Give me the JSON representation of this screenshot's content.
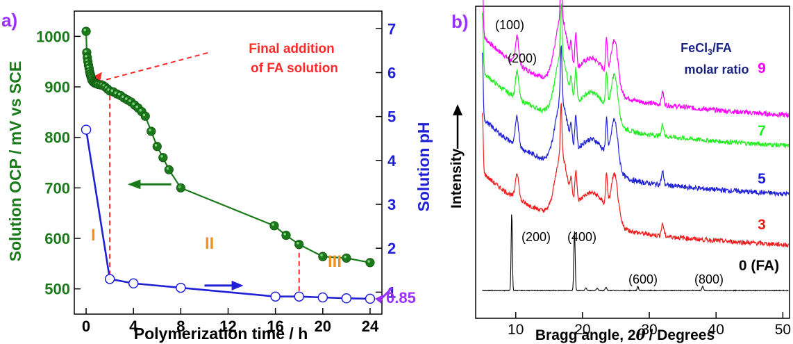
{
  "chart_data": [
    {
      "panel_label": "a)",
      "type": "line",
      "xlabel": "Polymerization time / h",
      "ylabel_left": "Solution OCP / mV vs SCE",
      "ylabel_right": "Solution pH",
      "xlim": [
        -1,
        25
      ],
      "ylim_left": [
        450,
        1050
      ],
      "ylim_right": [
        0.5,
        7.4
      ],
      "xticks": [
        "0",
        "4",
        "8",
        "12",
        "16",
        "20",
        "24"
      ],
      "yticks_left": [
        "500",
        "600",
        "700",
        "800",
        "900",
        "1000"
      ],
      "yticks_right": [
        "1",
        "2",
        "3",
        "4",
        "5",
        "6",
        "7"
      ],
      "colors": {
        "ocp": "#1a7a1a",
        "ph": "#1f1fd6",
        "annotation": "#ff2a2a",
        "roman": "#f0901e",
        "highlight": "#9b30ff"
      },
      "series": [
        {
          "name": "",
          "axis": "left",
          "x": [
            0,
            0.05,
            0.1,
            0.15,
            0.2,
            0.25,
            0.3,
            0.35,
            0.4,
            0.45,
            0.5,
            0.6,
            0.7,
            0.8,
            0.9,
            1.0,
            1.2,
            1.4,
            1.6,
            1.8,
            2.0,
            2.3,
            2.6,
            2.9,
            3.2,
            3.5,
            3.8,
            4.1,
            4.4,
            4.7,
            5.0,
            5.5,
            6.0,
            6.5,
            7.0,
            8.0,
            15.9,
            16.9,
            18.0,
            20.0,
            22.0,
            24.0
          ],
          "values": [
            1010,
            968,
            958,
            950,
            943,
            937,
            930,
            925,
            921,
            917,
            913,
            910,
            908,
            907,
            906,
            905,
            904,
            903,
            900,
            896,
            892,
            890,
            886,
            883,
            878,
            874,
            870,
            864,
            858,
            851,
            842,
            812,
            782,
            760,
            736,
            700,
            625,
            606,
            588,
            564,
            561,
            552
          ]
        },
        {
          "name": "",
          "axis": "right",
          "x": [
            0,
            2,
            4,
            8,
            16,
            18,
            20,
            22,
            24
          ],
          "values": [
            4.7,
            1.3,
            1.2,
            1.1,
            0.9,
            0.9,
            0.88,
            0.86,
            0.85
          ]
        }
      ],
      "annotations": {
        "final_addition_line1": "Final addition",
        "final_addition_line2": "of FA solution",
        "region_1": "I",
        "region_2": "II",
        "region_3": "III",
        "ph_end_value": "0.85"
      }
    },
    {
      "panel_label": "b)",
      "type": "line",
      "xlabel_prefix": "Bragg angle, 2",
      "xlabel_theta": "θ",
      "xlabel_suffix": "/ Degrees",
      "ylabel": "Intensity",
      "xlim": [
        4,
        51
      ],
      "xticks": [
        "10",
        "20",
        "30",
        "40",
        "50"
      ],
      "legend_title_line1": "FeCl",
      "legend_title_sub": "3",
      "legend_title_line1_rest": "/FA",
      "legend_title_line2": "molar ratio",
      "series": [
        {
          "name": "9",
          "color": "#ff00ff"
        },
        {
          "name": "7",
          "color": "#22ee22"
        },
        {
          "name": "5",
          "color": "#1f1fd6"
        },
        {
          "name": "3",
          "color": "#ee1c1c"
        },
        {
          "name": "0 (FA)",
          "color": "#000000"
        }
      ],
      "peak_labels": [
        "(100)",
        "(200)",
        "(200)",
        "(400)",
        "(600)",
        "(800)"
      ]
    }
  ]
}
